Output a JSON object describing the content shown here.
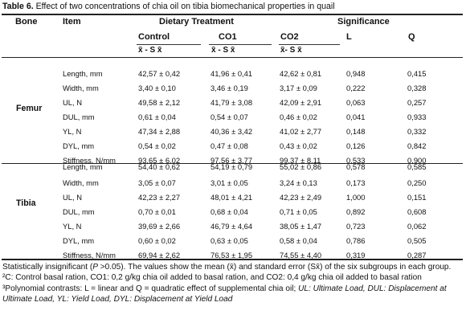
{
  "caption": {
    "label": "Table 6.",
    "text": " Effect of two concentrations of chia oil on tibia biomechanical properties in quail"
  },
  "headers": {
    "bone": "Bone",
    "item": "Item",
    "dietary": "Dietary Treatment",
    "significance": "Significance",
    "control": "Control",
    "co1": "CO1",
    "co2": "CO2",
    "l": "L",
    "q": "Q",
    "sym_control": "x̄ - S x̄",
    "sym_co1": "x̄ - S x̄",
    "sym_co2": "x̄- S x̄"
  },
  "groups": [
    {
      "bone": "Femur",
      "rows": [
        {
          "item": "Length, mm",
          "control": "42,57 ± 0,42",
          "co1": "41,96 ± 0,41",
          "co2": "42,62 ± 0,81",
          "l": "0,948",
          "q": "0,415"
        },
        {
          "item": "Width, mm",
          "control": "3,40 ± 0,10",
          "co1": "3,46 ± 0,19",
          "co2": "3,17 ± 0,09",
          "l": "0,222",
          "q": "0,328"
        },
        {
          "item": "UL, N",
          "control": "49,58 ± 2,12",
          "co1": "41,79 ± 3,08",
          "co2": "42,09 ± 2,91",
          "l": "0,063",
          "q": "0,257"
        },
        {
          "item": "DUL, mm",
          "control": "0,61 ± 0,04",
          "co1": "0,54 ± 0,07",
          "co2": "0,46 ± 0,02",
          "l": "0,041",
          "q": "0,933"
        },
        {
          "item": "YL, N",
          "control": "47,34 ± 2,88",
          "co1": "40,36 ± 3,42",
          "co2": "41,02 ± 2,77",
          "l": "0,148",
          "q": "0,332"
        },
        {
          "item": "DYL, mm",
          "control": "0,54 ± 0,02",
          "co1": "0,47 ± 0,08",
          "co2": "0,43 ± 0,02",
          "l": "0,126",
          "q": "0,842"
        },
        {
          "item": "Stiffness, N/mm",
          "control": "93,65 ± 6,02",
          "co1": "97,56 ± 3,77",
          "co2": "99,37 ± 8,11",
          "l": "0,533",
          "q": "0,900"
        }
      ]
    },
    {
      "bone": "Tibia",
      "rows": [
        {
          "item": "Length, mm",
          "control": "54,40 ± 0,62",
          "co1": "54,19 ± 0,79",
          "co2": "55,02 ± 0,86",
          "l": "0,578",
          "q": "0,585"
        },
        {
          "item": "Width, mm",
          "control": "3,05 ± 0,07",
          "co1": "3,01 ± 0,05",
          "co2": "3,24 ± 0,13",
          "l": "0,173",
          "q": "0,250"
        },
        {
          "item": "UL, N",
          "control": "42,23 ± 2,27",
          "co1": "48,01 ± 4,21",
          "co2": "42,23 ± 2,49",
          "l": "1,000",
          "q": "0,151"
        },
        {
          "item": "DUL, mm",
          "control": "0,70 ± 0,01",
          "co1": "0,68 ± 0,04",
          "co2": "0,71 ± 0,05",
          "l": "0,892",
          "q": "0,608"
        },
        {
          "item": "YL, N",
          "control": "39,69 ± 2,66",
          "co1": "46,79 ± 4,64",
          "co2": "38,05 ± 1,47",
          "l": "0,723",
          "q": "0,062"
        },
        {
          "item": "DYL, mm",
          "control": "0,60 ± 0,02",
          "co1": "0,63 ± 0,05",
          "co2": "0,58 ± 0,04",
          "l": "0,786",
          "q": "0,505"
        },
        {
          "item": "Stiffness, N/mm",
          "control": "69,94 ± 2,62",
          "co1": "76,53 ± 1,95",
          "co2": "74,55 ± 4,40",
          "l": "0,319",
          "q": "0,287"
        }
      ]
    }
  ],
  "footnote": {
    "p1": "Statistically insignificant (",
    "p_italic": "P",
    "p2": " >0.05). The values show the mean (x̄) and standard error (Sx̄) of the six subgroups in each group. ²C: Control basal ration, CO1: 0,2 g/kg chia oil added to basal ration, and CO2: 0,4 g/kg chia oil added to basal ration ³Polynomial contrasts: L = linear and Q = quadratic effect of supplemental chia oil; ",
    "italic": "UL: Ultimate Load, DUL: Displacement at Ultimate Load, YL: Yield Load, DYL: Displacement at Yield Load"
  }
}
